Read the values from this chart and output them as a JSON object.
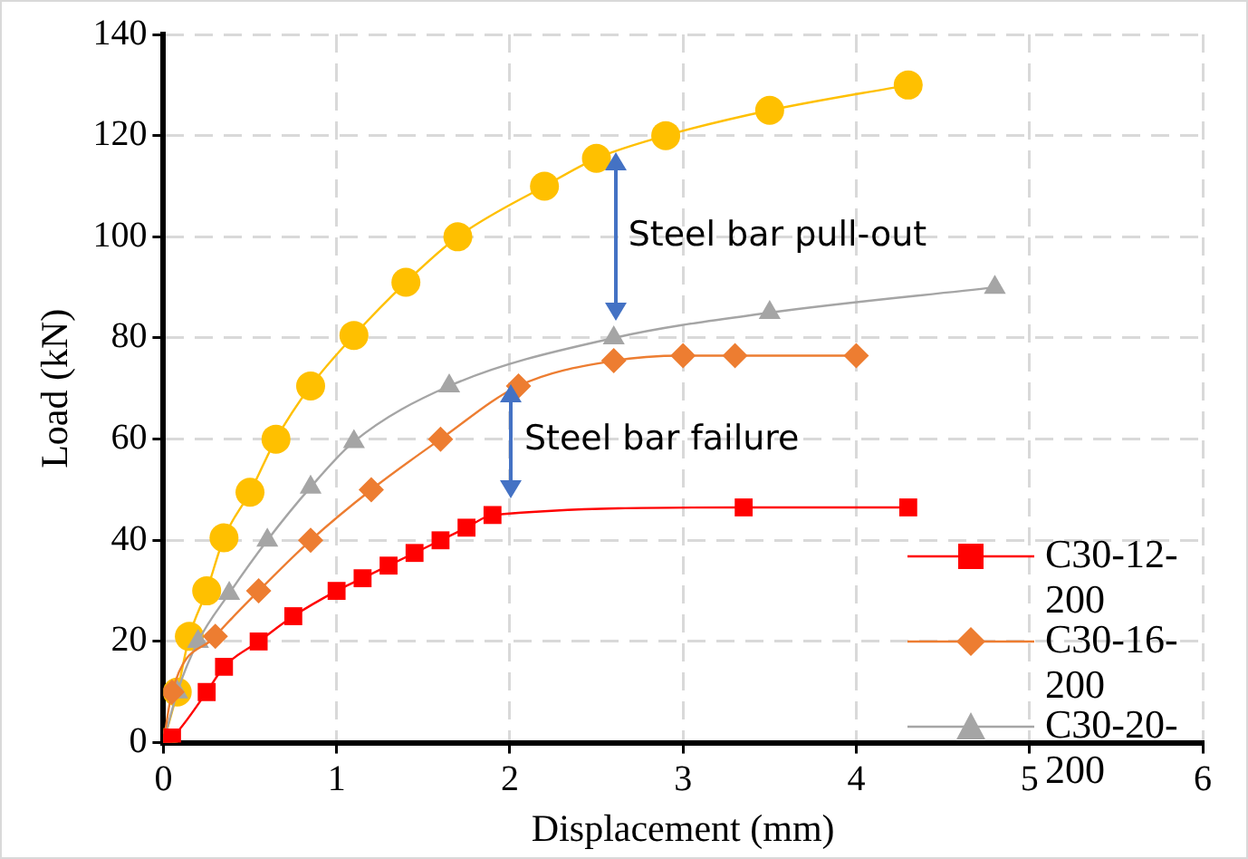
{
  "chart_data": {
    "type": "line",
    "xlabel": "Displacement (mm)",
    "ylabel": "Load (kN)",
    "xlim": [
      0,
      6
    ],
    "xticks": [
      0,
      1,
      2,
      3,
      4,
      5,
      6
    ],
    "ylim": [
      0,
      140
    ],
    "yticks": [
      0,
      20,
      40,
      60,
      80,
      100,
      120,
      140
    ],
    "grid": true,
    "legend": "right",
    "annotations": [
      {
        "text": "Steel bar pull-out",
        "x": 2.6,
        "y": 80
      },
      {
        "text": "Steel bar failure",
        "x": 2.0,
        "y": 45
      }
    ],
    "series": [
      {
        "name": "C30-12-200",
        "color": "#ff0000",
        "marker": "square",
        "x": [
          0,
          0.05,
          0.25,
          0.35,
          0.55,
          0.75,
          1.0,
          1.15,
          1.3,
          1.45,
          1.6,
          1.75,
          1.9,
          3.35,
          4.3
        ],
        "values": [
          0,
          1,
          10,
          15,
          20,
          25,
          30,
          32.5,
          35,
          37.5,
          40,
          42.5,
          45,
          46.5,
          46.5
        ]
      },
      {
        "name": "C30-16-200",
        "color": "#ed7d31",
        "marker": "diamond",
        "x": [
          0,
          0.05,
          0.3,
          0.55,
          0.85,
          1.2,
          1.6,
          2.05,
          2.6,
          3.0,
          3.3,
          4.0
        ],
        "values": [
          0,
          10,
          21,
          30,
          40,
          50,
          60,
          70.5,
          75.5,
          76.5,
          76.5,
          76.5
        ]
      },
      {
        "name": "C30-20-200",
        "color": "#a5a5a5",
        "marker": "triangle",
        "x": [
          0,
          0.08,
          0.2,
          0.38,
          0.6,
          0.85,
          1.1,
          1.65,
          2.6,
          3.5,
          4.8
        ],
        "values": [
          0,
          10,
          20,
          29.5,
          40,
          50.5,
          59.5,
          70.5,
          80,
          85,
          90
        ]
      },
      {
        "color": "#ffc000",
        "marker": "circle",
        "x": [
          0,
          0.08,
          0.15,
          0.25,
          0.35,
          0.5,
          0.65,
          0.85,
          1.1,
          1.4,
          1.7,
          2.2,
          2.5,
          2.9,
          3.5,
          4.3
        ],
        "values": [
          0,
          10,
          21,
          30,
          40.5,
          49.5,
          60,
          70.5,
          80.5,
          91,
          100,
          110,
          115.5,
          120,
          125,
          130
        ]
      }
    ]
  }
}
